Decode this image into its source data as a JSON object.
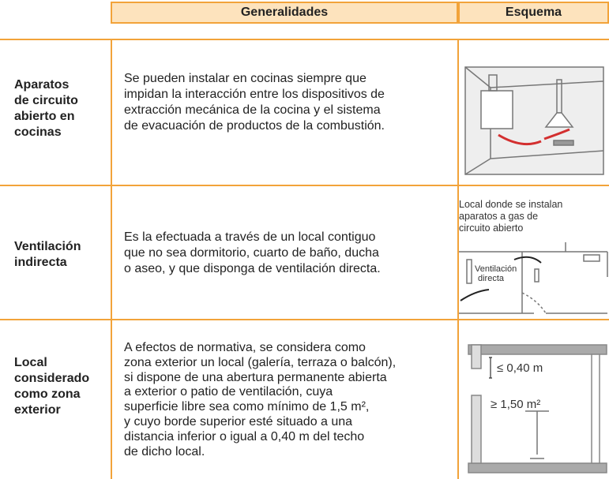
{
  "table": {
    "header": [
      "Generalidades",
      "Esquema"
    ],
    "rows": [
      {
        "label": [
          "Aparatos",
          "de circuito",
          "abierto en",
          "cocinas"
        ],
        "text": [
          "Se pueden instalar en cocinas siempre que",
          "impidan la interacción entre los dispositivos de",
          "extracción mecánica de la cocina y el sistema",
          "de evacuación de productos de la combustión."
        ],
        "diagram_labels": []
      },
      {
        "label": [
          "Ventilación",
          "indirecta"
        ],
        "text": [
          "Es la efectuada a través de un local contiguo",
          "que no sea dormitorio, cuarto de baño, ducha",
          "o aseo, y que disponga de ventilación directa."
        ],
        "diagram_labels": [
          "Local donde se instalan",
          "aparatos a gas de",
          "circuito abierto",
          "Ventilación",
          "directa"
        ]
      },
      {
        "label": [
          "Local",
          "considerado",
          "como zona",
          "exterior"
        ],
        "text": [
          "A efectos de normativa, se considera como",
          "zona exterior un local (galería, terraza o balcón),",
          "si dispone de una abertura permanente abierta",
          "a exterior o patio de ventilación, cuya",
          "superficie libre sea como mínimo de 1,5 m²,",
          "y cuyo borde superior esté situado a una",
          "distancia inferior o igual a 0,40 m del techo",
          "de dicho local."
        ],
        "diagram_labels": [
          "≤ 0,40 m",
          "≥ 1,50 m²"
        ]
      }
    ]
  }
}
